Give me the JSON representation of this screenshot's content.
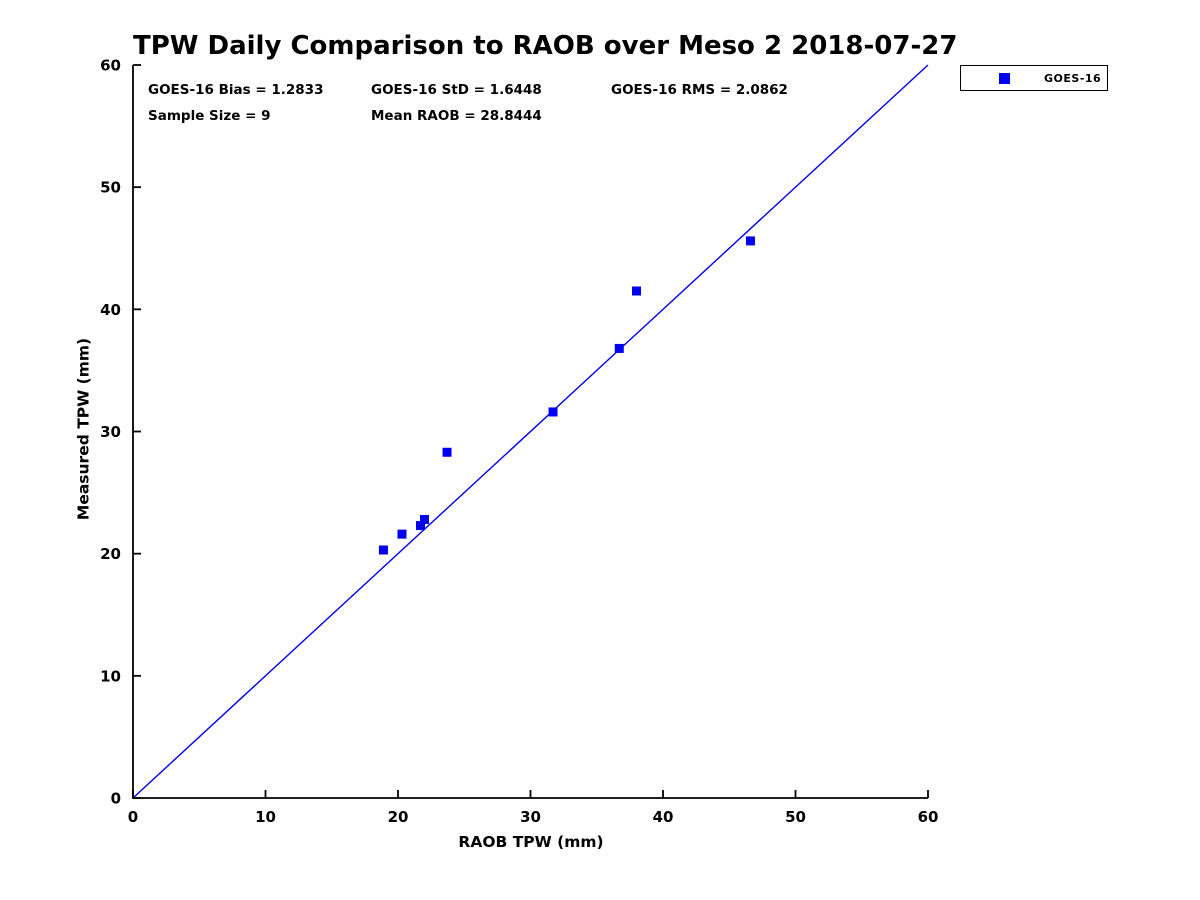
{
  "stats": {
    "bias": "GOES-16 Bias = 1.2833",
    "std": "GOES-16 StD = 1.6448",
    "rms": "GOES-16 RMS = 2.0862",
    "sample_size": "Sample Size = 9",
    "mean_raob": "Mean RAOB = 28.8444"
  },
  "legend": {
    "label": "GOES-16",
    "marker": "filled-square",
    "marker_color": "#0000ee"
  },
  "chart_data": {
    "type": "scatter",
    "title": "TPW Daily Comparison to RAOB over Meso 2 2018-07-27",
    "xlabel": "RAOB TPW (mm)",
    "ylabel": "Measured TPW (mm)",
    "xlim": [
      0,
      60
    ],
    "ylim": [
      0,
      60
    ],
    "xticks": [
      0,
      10,
      20,
      30,
      40,
      50,
      60
    ],
    "yticks": [
      0,
      10,
      20,
      30,
      40,
      50,
      60
    ],
    "grid": false,
    "legend_position": "outside-top-right",
    "axis_color": "#000000",
    "series": [
      {
        "name": "GOES-16",
        "marker": "filled-square",
        "color": "#0000ee",
        "points": [
          [
            18.9,
            20.3
          ],
          [
            20.3,
            21.6
          ],
          [
            21.7,
            22.3
          ],
          [
            22.0,
            22.8
          ],
          [
            23.7,
            28.3
          ],
          [
            31.7,
            31.6
          ],
          [
            36.7,
            36.8
          ],
          [
            38.0,
            41.5
          ],
          [
            46.6,
            45.6
          ]
        ]
      }
    ],
    "reference_line": {
      "from": [
        0,
        0
      ],
      "to": [
        60,
        60
      ],
      "color": "#0000ee"
    },
    "annotations": [
      "GOES-16 Bias = 1.2833",
      "GOES-16 StD = 1.6448",
      "GOES-16 RMS = 2.0862",
      "Sample Size = 9",
      "Mean RAOB = 28.8444"
    ],
    "stats_values": {
      "bias": 1.2833,
      "std": 1.6448,
      "rms": 2.0862,
      "sample_size": 9,
      "mean_raob": 28.8444
    }
  }
}
